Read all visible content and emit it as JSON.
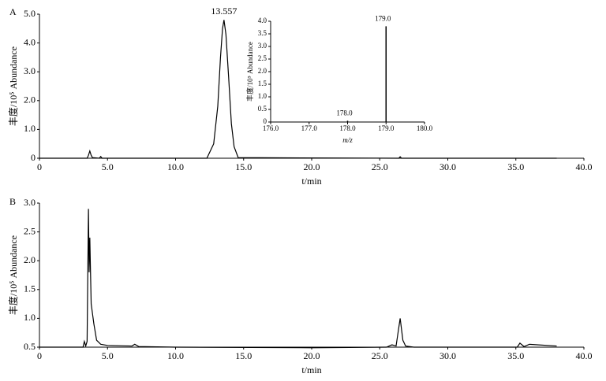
{
  "chart_data": [
    {
      "type": "line",
      "title": "A",
      "x_label": "t/min",
      "y_label": "丰度/10⁵ Abundance",
      "annotation": "13.557",
      "xlim": [
        0,
        40
      ],
      "ylim": [
        0,
        5
      ],
      "xticks": [
        0,
        {
          "value": 5,
          "label": "5.0"
        },
        {
          "value": 10,
          "label": "10.0"
        },
        {
          "value": 15,
          "label": "15.0"
        },
        {
          "value": 20,
          "label": "20.0"
        },
        {
          "value": 25,
          "label": "25.0"
        },
        {
          "value": 30,
          "label": "30.0"
        },
        {
          "value": 35,
          "label": "35.0"
        },
        {
          "value": 40,
          "label": "40.0"
        }
      ],
      "yticks": [
        0,
        {
          "value": 1,
          "label": "1.0"
        },
        {
          "value": 2,
          "label": "2.0"
        },
        {
          "value": 3,
          "label": "3.0"
        },
        {
          "value": 4,
          "label": "4.0"
        },
        {
          "value": 5,
          "label": "5.0"
        }
      ],
      "color": "#000000",
      "x": [
        0,
        3.5,
        3.6,
        3.7,
        3.8,
        3.9,
        4.4,
        4.5,
        4.6,
        12.3,
        12.8,
        13.1,
        13.3,
        13.45,
        13.557,
        13.7,
        13.9,
        14.1,
        14.3,
        14.6,
        26.4,
        26.5,
        26.6,
        38
      ],
      "values": [
        0,
        0,
        0.1,
        0.25,
        0.1,
        0.02,
        0,
        0.06,
        0,
        0,
        0.5,
        1.8,
        3.5,
        4.5,
        4.8,
        4.3,
        2.8,
        1.2,
        0.4,
        0.02,
        0,
        0.05,
        0,
        0
      ]
    },
    {
      "type": "bar",
      "x_label": "m/z",
      "y_label": "丰度/10⁵ Abundance",
      "xlim": [
        176,
        180
      ],
      "ylim": [
        0,
        4
      ],
      "xticks": [
        {
          "value": 176,
          "label": "176.0"
        },
        {
          "value": 177,
          "label": "177.0"
        },
        {
          "value": 178,
          "label": "178.0"
        },
        {
          "value": 179,
          "label": "179.0"
        },
        {
          "value": 180,
          "label": "180.0"
        }
      ],
      "yticks": [
        0,
        0.5,
        {
          "value": 1,
          "label": "1.0"
        },
        1.5,
        {
          "value": 2,
          "label": "2.0"
        },
        2.5,
        {
          "value": 3,
          "label": "3.0"
        },
        3.5,
        {
          "value": 4,
          "label": "4.0"
        }
      ],
      "color": "#000000",
      "x": [
        178,
        179
      ],
      "values": [
        0.05,
        3.8
      ],
      "peak_labels": [
        "178.0",
        "179.0"
      ]
    },
    {
      "type": "line",
      "title": "B",
      "x_label": "t/min",
      "y_label": "丰度/10⁵ Abundance",
      "xlim": [
        0,
        40
      ],
      "ylim": [
        0.5,
        3
      ],
      "xticks": [
        0,
        {
          "value": 5,
          "label": "5.0"
        },
        {
          "value": 10,
          "label": "10.0"
        },
        {
          "value": 15,
          "label": "15.0"
        },
        {
          "value": 20,
          "label": "20.0"
        },
        {
          "value": 25,
          "label": "25.0"
        },
        {
          "value": 30,
          "label": "30.0"
        },
        {
          "value": 35,
          "label": "35.0"
        },
        {
          "value": 40,
          "label": "40.0"
        }
      ],
      "yticks": [
        0.5,
        {
          "value": 1,
          "label": "1.0"
        },
        1.5,
        {
          "value": 2,
          "label": "2.0"
        },
        2.5,
        {
          "value": 3,
          "label": "3.0"
        }
      ],
      "color": "#000000",
      "x": [
        0,
        3.2,
        3.3,
        3.4,
        3.5,
        3.6,
        3.65,
        3.7,
        3.8,
        4.0,
        4.2,
        4.5,
        5.0,
        6.8,
        7.0,
        7.3,
        10,
        20,
        25.5,
        25.9,
        26.2,
        26.5,
        26.7,
        26.9,
        27.5,
        35.1,
        35.3,
        35.6,
        36.0,
        38
      ],
      "values": [
        0.5,
        0.5,
        0.6,
        0.52,
        0.6,
        2.9,
        1.8,
        2.4,
        1.25,
        0.9,
        0.62,
        0.55,
        0.53,
        0.52,
        0.55,
        0.51,
        0.5,
        0.49,
        0.5,
        0.54,
        0.52,
        1.0,
        0.62,
        0.52,
        0.5,
        0.5,
        0.57,
        0.51,
        0.55,
        0.52
      ]
    }
  ]
}
